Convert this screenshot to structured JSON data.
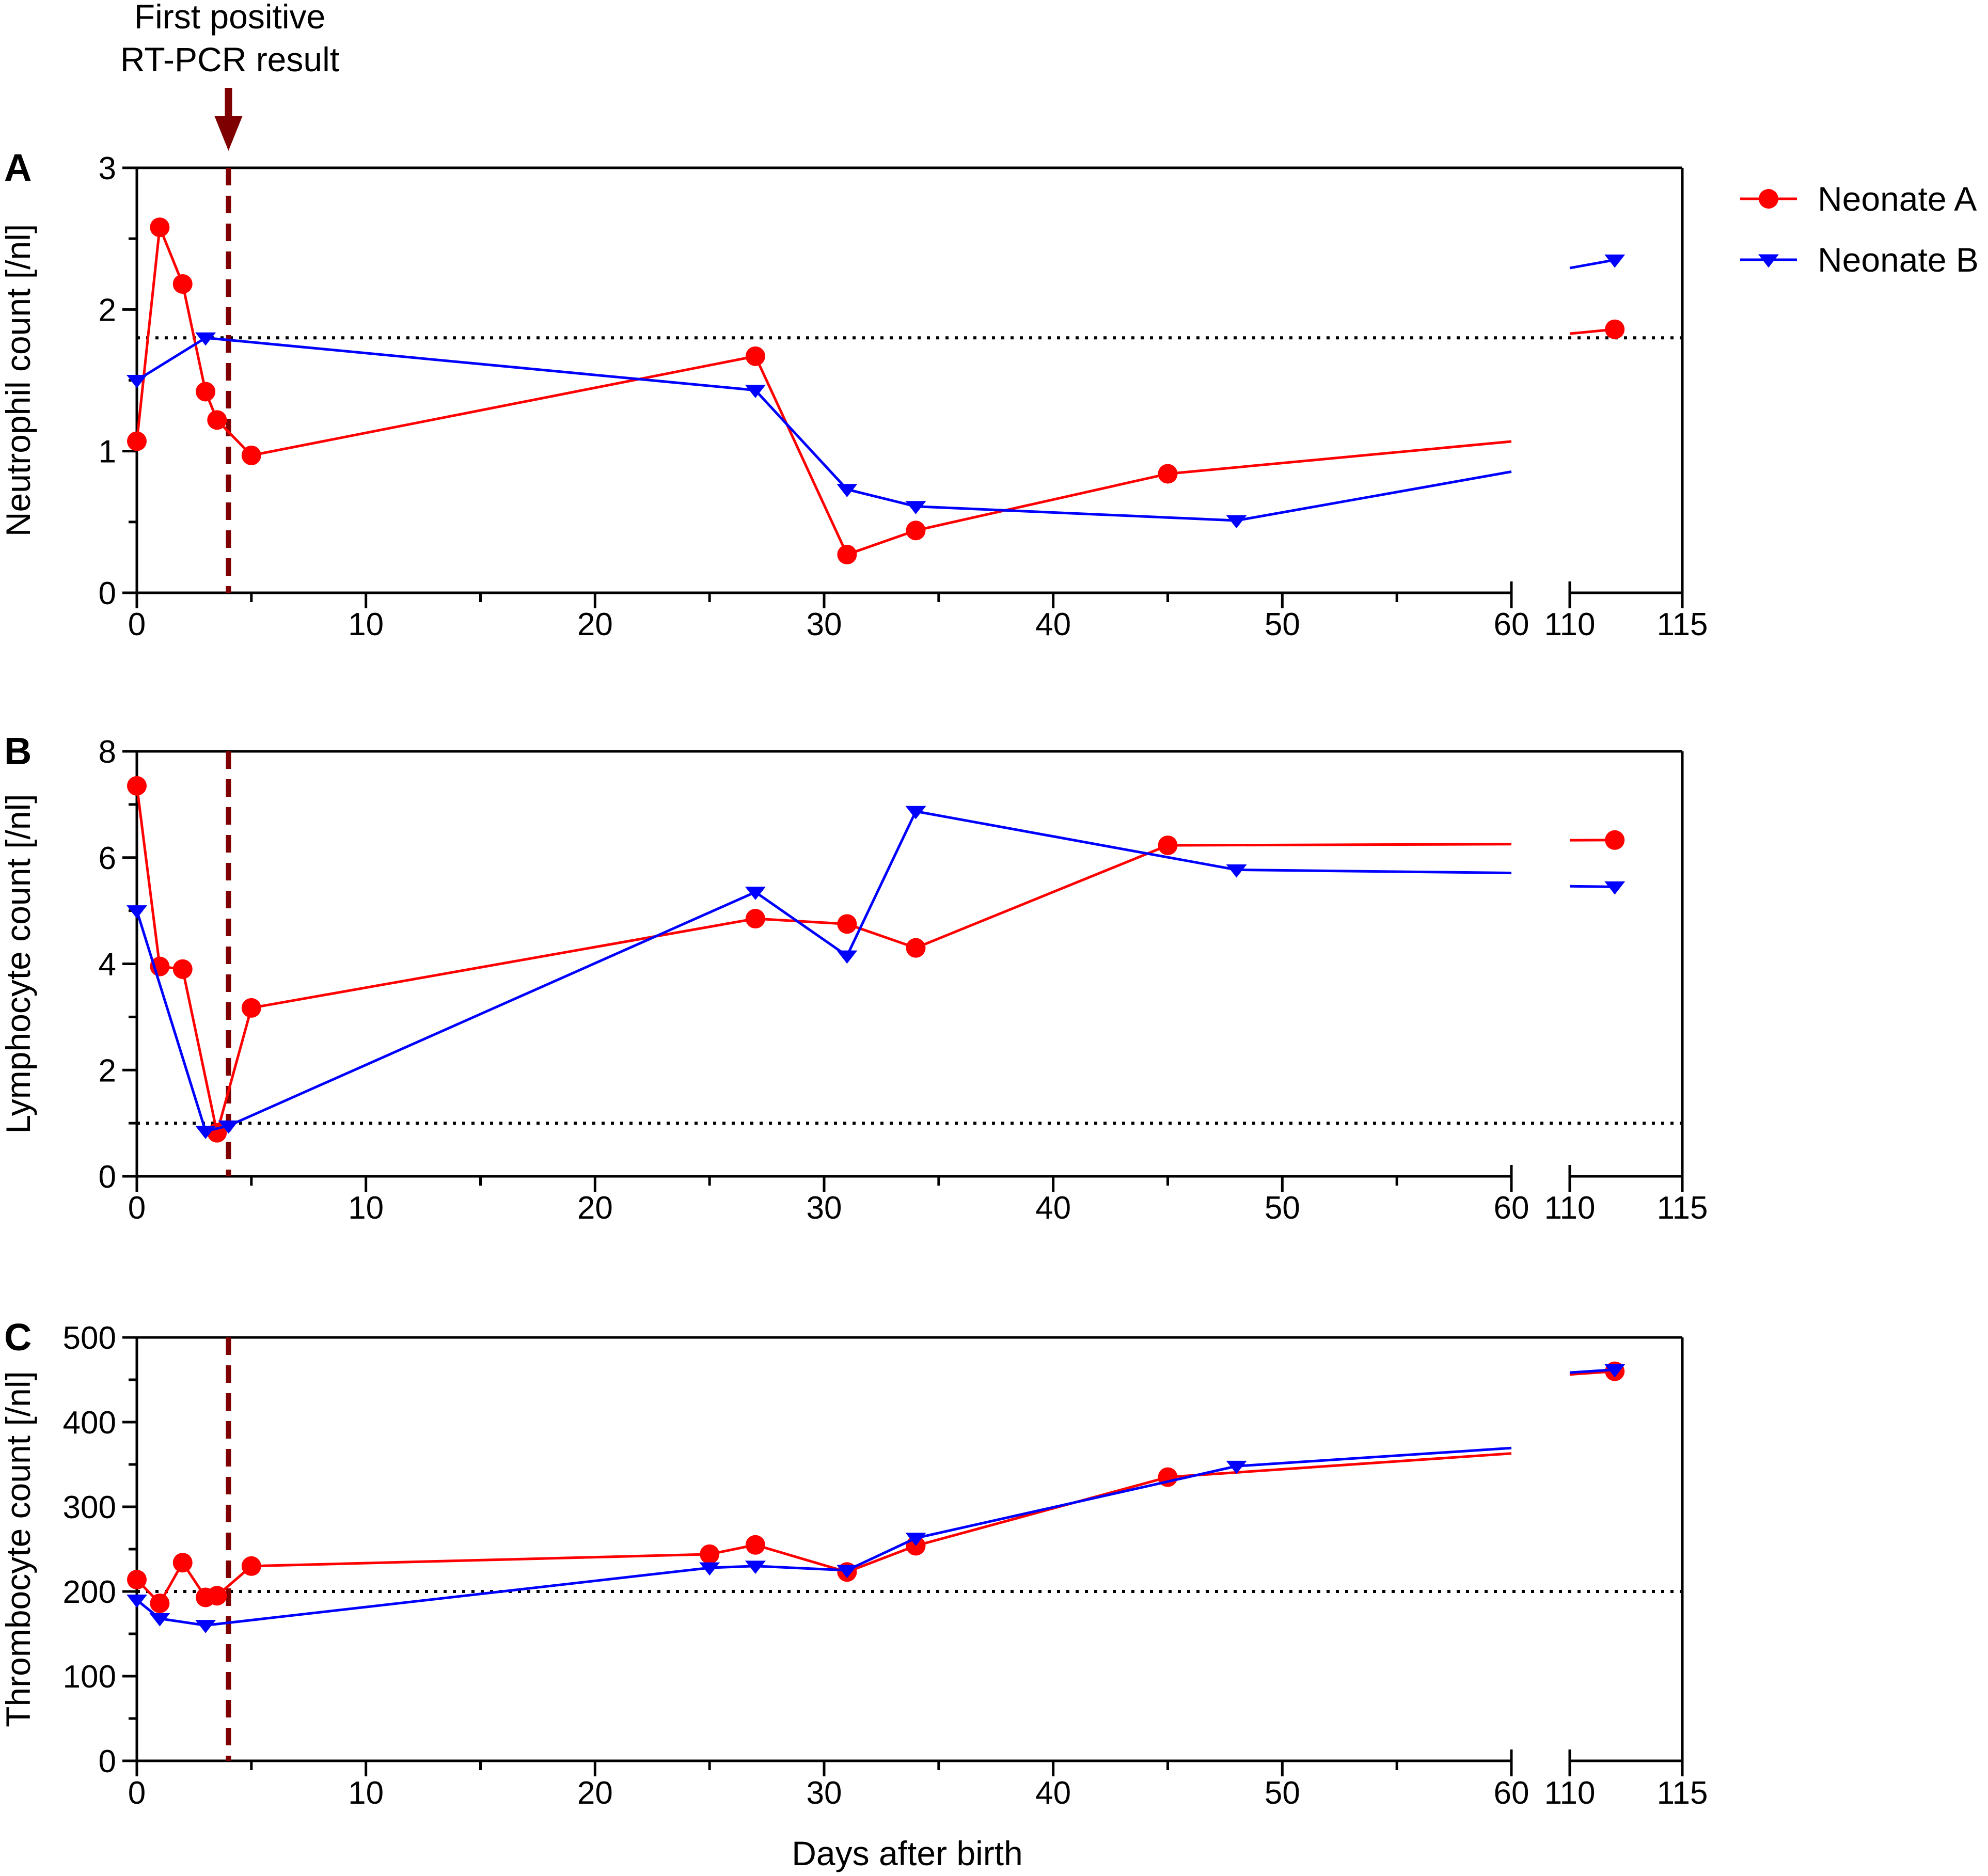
{
  "chart_data": [
    {
      "type": "line",
      "panel": "A",
      "ylabel": "Neutrophil count [/nl]",
      "ylim": [
        0,
        3
      ],
      "yticks": [
        0,
        1,
        2,
        3
      ],
      "reference_line": 1.8,
      "series": [
        {
          "name": "Neonate A",
          "x": [
            0,
            1,
            2,
            3,
            3.5,
            5,
            27,
            31,
            34,
            45,
            112
          ],
          "values": [
            1.07,
            2.58,
            2.18,
            1.42,
            1.22,
            0.97,
            1.67,
            0.27,
            0.44,
            0.84,
            1.86
          ]
        },
        {
          "name": "Neonate B",
          "x": [
            0,
            3,
            27,
            31,
            34,
            48,
            112
          ],
          "values": [
            1.5,
            1.8,
            1.43,
            0.73,
            0.61,
            0.51,
            2.35
          ]
        }
      ],
      "tick_labels": [
        "0",
        "10",
        "20",
        "30",
        "40",
        "50",
        "60",
        "110",
        "115"
      ]
    },
    {
      "type": "line",
      "panel": "B",
      "ylabel": "Lymphocyte count [/nl]",
      "ylim": [
        0,
        8
      ],
      "yticks": [
        0,
        2,
        4,
        6,
        8
      ],
      "reference_line": 1.0,
      "series": [
        {
          "name": "Neonate A",
          "x": [
            0,
            1,
            2,
            3.5,
            5,
            27,
            31,
            34,
            45,
            112
          ],
          "values": [
            7.35,
            3.95,
            3.9,
            0.82,
            3.17,
            4.85,
            4.75,
            4.3,
            6.23,
            6.33
          ]
        },
        {
          "name": "Neonate B",
          "x": [
            0,
            3,
            4,
            27,
            31,
            34,
            48,
            112
          ],
          "values": [
            5.0,
            0.85,
            0.95,
            5.35,
            4.15,
            6.87,
            5.77,
            5.45
          ]
        }
      ],
      "tick_labels": [
        "0",
        "10",
        "20",
        "30",
        "40",
        "50",
        "60",
        "110",
        "115"
      ]
    },
    {
      "type": "line",
      "panel": "C",
      "ylabel": "Thrombocyte count [/nl]",
      "xlabel": "Days after birth",
      "ylim": [
        0,
        500
      ],
      "yticks": [
        0,
        100,
        200,
        300,
        400,
        500
      ],
      "reference_line": 200,
      "series": [
        {
          "name": "Neonate A",
          "x": [
            0,
            1,
            2,
            3,
            3.5,
            5,
            25,
            27,
            31,
            34,
            45,
            112
          ],
          "values": [
            214,
            186,
            234,
            193,
            195,
            230,
            244,
            255,
            223,
            254,
            335,
            460
          ]
        },
        {
          "name": "Neonate B",
          "x": [
            0,
            1,
            3,
            25,
            27,
            31,
            34,
            48,
            112
          ],
          "values": [
            190,
            168,
            160,
            228,
            230,
            225,
            263,
            348,
            462
          ]
        }
      ],
      "tick_labels": [
        "0",
        "10",
        "20",
        "30",
        "40",
        "50",
        "60",
        "110",
        "115"
      ]
    }
  ],
  "legend": [
    {
      "label": "Neonate A",
      "color": "#ff0000",
      "marker": "circle"
    },
    {
      "label": "Neonate B",
      "color": "#0000ff",
      "marker": "triangle-down"
    }
  ],
  "annotation": {
    "line1": "First positive",
    "line2": "RT-PCR result",
    "day": 4,
    "color": "#7f0000"
  },
  "colors": {
    "neonate_a": "#ff0000",
    "neonate_b": "#0000ff",
    "annotation": "#7f0000",
    "axis": "#000000"
  }
}
